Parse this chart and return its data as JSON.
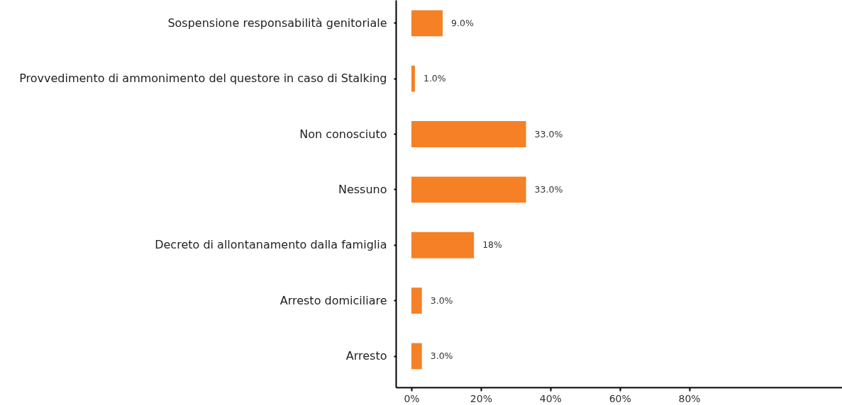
{
  "chart_data": {
    "type": "bar",
    "orientation": "horizontal",
    "categories": [
      "Sospensione responsabilità genitoriale",
      "Provvedimento di ammonimento del questore in caso di Stalking",
      "Non conosciuto",
      "Nessuno",
      "Decreto di allontanamento dalla famiglia",
      "Arresto domiciliare",
      "Arresto"
    ],
    "values": [
      9.0,
      1.0,
      33.0,
      33.0,
      18,
      3.0,
      3.0
    ],
    "value_labels": [
      "9.0%",
      "1.0%",
      "33.0%",
      "33.0%",
      "18%",
      "3.0%",
      "3.0%"
    ],
    "color": "#f58025",
    "xlim": [
      -4.5,
      124
    ],
    "xticks": [
      {
        "value": 0,
        "label": "0%"
      },
      {
        "value": 20,
        "label": "20%"
      },
      {
        "value": 40,
        "label": "40%"
      },
      {
        "value": 60,
        "label": "60%"
      },
      {
        "value": 80,
        "label": "80%"
      }
    ]
  }
}
